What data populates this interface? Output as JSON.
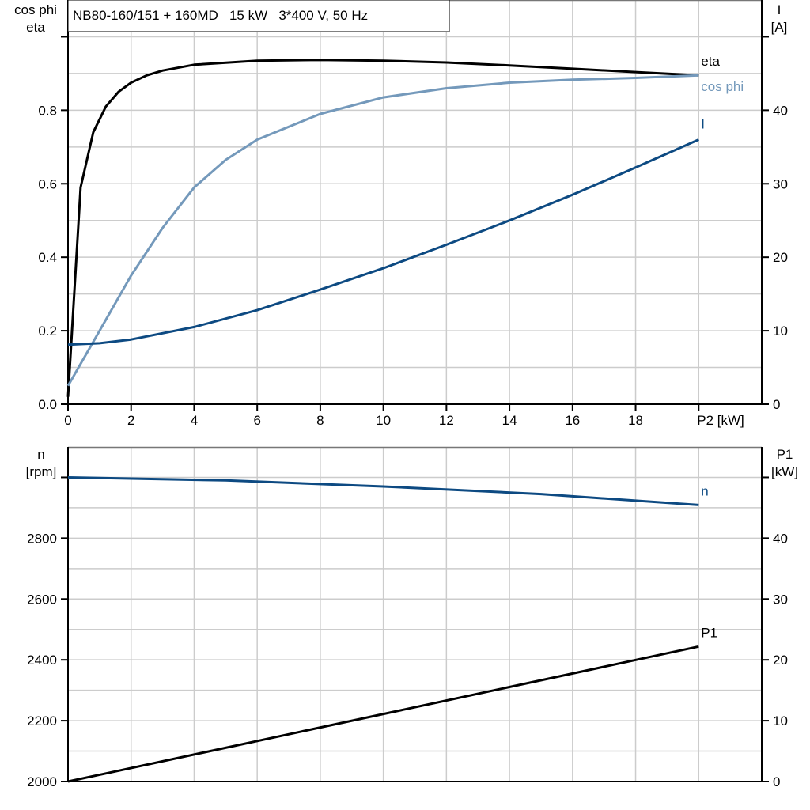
{
  "chart_data": [
    {
      "type": "line",
      "title": "NB80-160/151 + 160MD   15 kW   3*400 V, 50 Hz",
      "xlabel": "P2 [kW]",
      "ylabel_left": [
        "cos phi",
        "eta"
      ],
      "ylabel_right": [
        "I",
        "[A]"
      ],
      "xlim": [
        0,
        22
      ],
      "ylim_left": [
        0,
        1.1
      ],
      "ylim_right": [
        0,
        55
      ],
      "x_ticks": [
        "0",
        "2",
        "4",
        "6",
        "8",
        "10",
        "12",
        "14",
        "16",
        "18"
      ],
      "y_ticks_left": [
        "0.0",
        "0.2",
        "0.4",
        "0.6",
        "0.8"
      ],
      "y_ticks_right": [
        "0",
        "10",
        "20",
        "30",
        "40"
      ],
      "grid": true,
      "series": [
        {
          "name": "eta",
          "axis": "left",
          "color": "#000000",
          "x": [
            0,
            0.4,
            0.8,
            1.2,
            1.6,
            2,
            2.5,
            3,
            4,
            6,
            8,
            10,
            12,
            14,
            16,
            18,
            20
          ],
          "y": [
            0.02,
            0.59,
            0.74,
            0.81,
            0.85,
            0.875,
            0.895,
            0.908,
            0.924,
            0.935,
            0.937,
            0.935,
            0.93,
            0.922,
            0.913,
            0.904,
            0.895
          ]
        },
        {
          "name": "cos phi",
          "axis": "left",
          "color": "#7499bb",
          "x": [
            0,
            1,
            2,
            3,
            4,
            5,
            6,
            8,
            10,
            12,
            14,
            16,
            18,
            20
          ],
          "y": [
            0.05,
            0.2,
            0.35,
            0.48,
            0.59,
            0.665,
            0.72,
            0.79,
            0.835,
            0.86,
            0.875,
            0.883,
            0.888,
            0.895
          ]
        },
        {
          "name": "I",
          "axis": "right",
          "color": "#0d4a82",
          "x": [
            0,
            1,
            2,
            4,
            6,
            8,
            10,
            12,
            14,
            16,
            18,
            20
          ],
          "y": [
            8.1,
            8.3,
            8.8,
            10.5,
            12.8,
            15.6,
            18.5,
            21.7,
            25,
            28.5,
            32.2,
            36
          ]
        }
      ]
    },
    {
      "type": "line",
      "xlabel": "",
      "ylabel_left": [
        "n",
        "[rpm]"
      ],
      "ylabel_right": [
        "P1",
        "[kW]"
      ],
      "xlim": [
        0,
        22
      ],
      "ylim_left": [
        2000,
        3100
      ],
      "ylim_right": [
        0,
        55
      ],
      "y_ticks_left": [
        "2000",
        "2200",
        "2400",
        "2600",
        "2800"
      ],
      "y_ticks_right": [
        "0",
        "10",
        "20",
        "30",
        "40"
      ],
      "grid": true,
      "series": [
        {
          "name": "n",
          "axis": "left",
          "color": "#0d4a82",
          "x": [
            0,
            5,
            10,
            15,
            20
          ],
          "y": [
            3000,
            2990,
            2970,
            2945,
            2909
          ]
        },
        {
          "name": "P1",
          "axis": "right",
          "color": "#000000",
          "x": [
            0,
            20
          ],
          "y": [
            0,
            22.2
          ]
        }
      ]
    }
  ]
}
